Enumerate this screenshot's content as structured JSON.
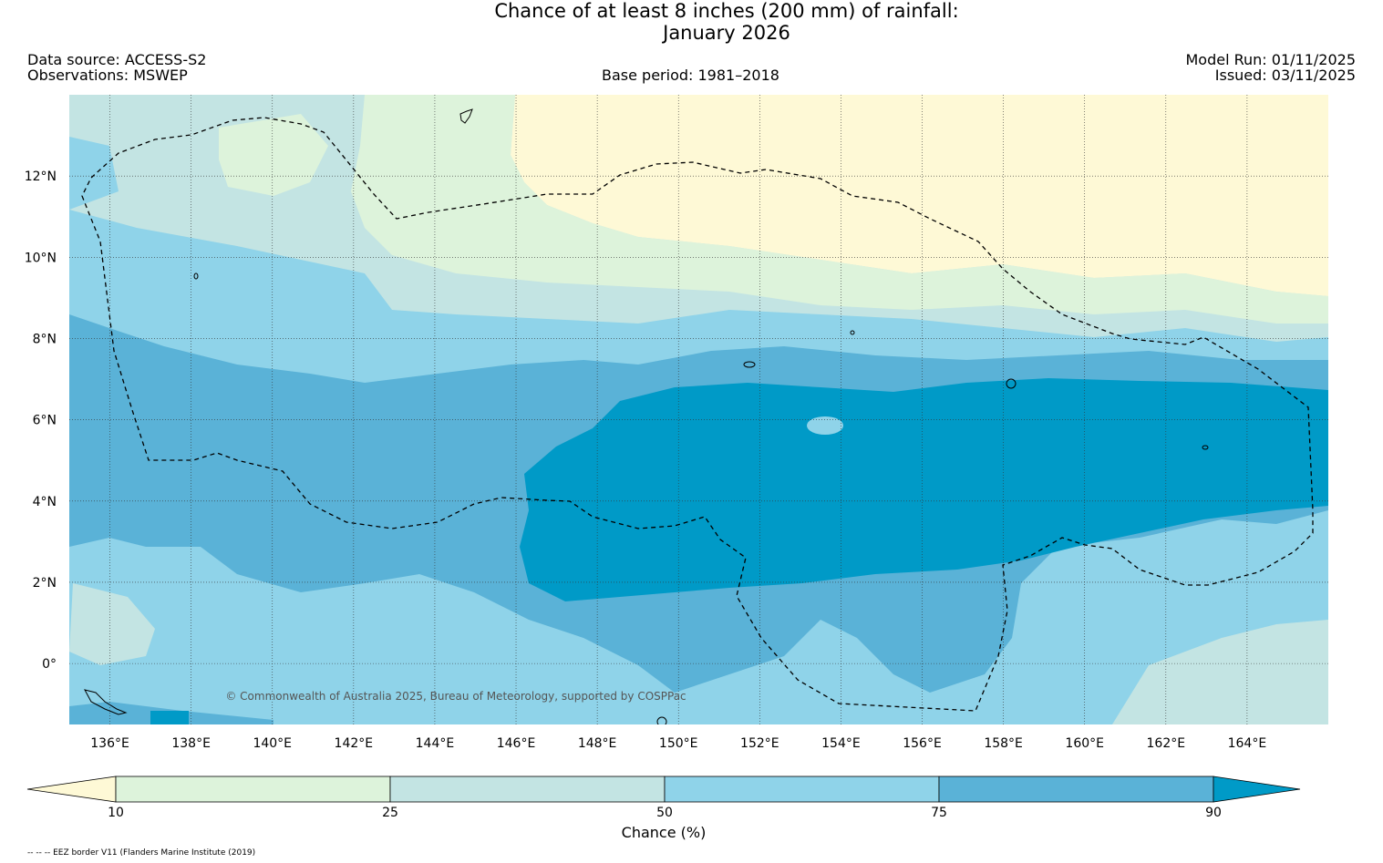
{
  "title": {
    "line1": "Chance of at least 8 inches (200  mm) of rainfall:",
    "line2": "January 2026"
  },
  "header": {
    "data_source": "Data source: ACCESS-S2",
    "observations": "Observations: MSWEP",
    "base_period": "Base period: 1981–2018",
    "model_run": "Model Run: 01/11/2025",
    "issued": "Issued: 03/11/2025"
  },
  "map": {
    "lon_labels": [
      "136°E",
      "138°E",
      "140°E",
      "142°E",
      "144°E",
      "146°E",
      "148°E",
      "150°E",
      "152°E",
      "154°E",
      "156°E",
      "158°E",
      "160°E",
      "162°E",
      "164°E"
    ],
    "lat_labels": [
      "12°N",
      "10°N",
      "8°N",
      "6°N",
      "4°N",
      "2°N",
      "0°"
    ],
    "lon_range": [
      135,
      166
    ],
    "lat_range": [
      -1.5,
      14
    ],
    "copyright": "© Commonwealth of Australia 2025, Bureau of Meteorology, supported by COSPPac"
  },
  "colorbar": {
    "ticks": [
      "10",
      "25",
      "50",
      "75",
      "90"
    ],
    "label": "Chance (%)",
    "classes": [
      {
        "range": "<10",
        "color": "#fef9d6"
      },
      {
        "range": "10-25",
        "color": "#ddf3db"
      },
      {
        "range": "25-50",
        "color": "#c3e4e3"
      },
      {
        "range": "50-75",
        "color": "#8fd3e9"
      },
      {
        "range": "75-90",
        "color": "#5ab2d7"
      },
      {
        "range": ">90",
        "color": "#009ac7"
      }
    ]
  },
  "footer": {
    "eez_note": "-- -- -- EEZ border V11 (Flanders Marine Institute (2019)"
  }
}
